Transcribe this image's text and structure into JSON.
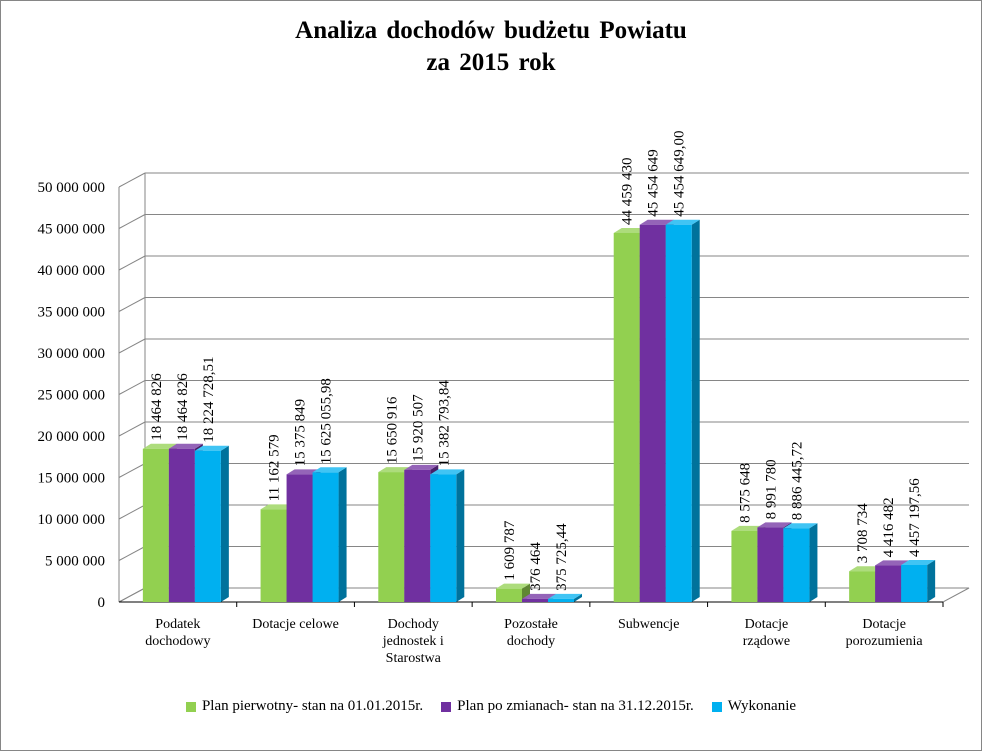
{
  "chart_data": {
    "type": "bar",
    "title": [
      "Analiza dochodów budżetu Powiatu",
      "za 2015 rok"
    ],
    "xlabel": "",
    "ylabel": "",
    "ylim": [
      0,
      50000000
    ],
    "yticks": [
      0,
      5000000,
      10000000,
      15000000,
      20000000,
      25000000,
      30000000,
      35000000,
      40000000,
      45000000,
      50000000
    ],
    "ytick_labels": [
      "0",
      "5 000 000",
      "10 000 000",
      "15 000 000",
      "20 000 000",
      "25 000 000",
      "30 000 000",
      "35 000 000",
      "40 000 000",
      "45 000 000",
      "50 000 000"
    ],
    "grid": true,
    "legend_position": "bottom",
    "categories": [
      [
        "Podatek",
        "dochodowy"
      ],
      [
        "Dotacje celowe"
      ],
      [
        "Dochody",
        "jednostek i",
        "Starostwa"
      ],
      [
        "Pozostałe",
        "dochody"
      ],
      [
        "Subwencje"
      ],
      [
        "Dotacje",
        "rządowe"
      ],
      [
        "Dotacje",
        "porozumienia"
      ]
    ],
    "series": [
      {
        "name": "Plan pierwotny- stan na 01.01.2015r.",
        "color": "#92D050",
        "values": [
          18464826,
          11162579,
          15650916,
          1609787,
          44459430,
          8575648,
          3708734
        ],
        "labels": [
          "18 464 826",
          "11 162 579",
          "15 650 916",
          "1 609 787",
          "44 459 430",
          "8 575 648",
          "3 708 734"
        ]
      },
      {
        "name": "Plan po zmianach- stan na 31.12.2015r.",
        "color": "#7030A0",
        "values": [
          18464826,
          15375849,
          15920507,
          376464,
          45454649,
          8991780,
          4416482
        ],
        "labels": [
          "18 464 826",
          "15 375 849",
          "15 920 507",
          "376 464",
          "45 454 649",
          "8 991 780",
          "4 416 482"
        ]
      },
      {
        "name": "Wykonanie",
        "color": "#00B0F0",
        "values": [
          18224728.51,
          15625055.98,
          15382793.84,
          375725.44,
          45454649.0,
          8886445.72,
          4457197.56
        ],
        "labels": [
          "18 224 728,51",
          "15 625 055,98",
          "15 382 793,84",
          "375 725,44",
          "45 454 649,00",
          "8 886 445,72",
          "4 457 197,56"
        ]
      }
    ]
  }
}
